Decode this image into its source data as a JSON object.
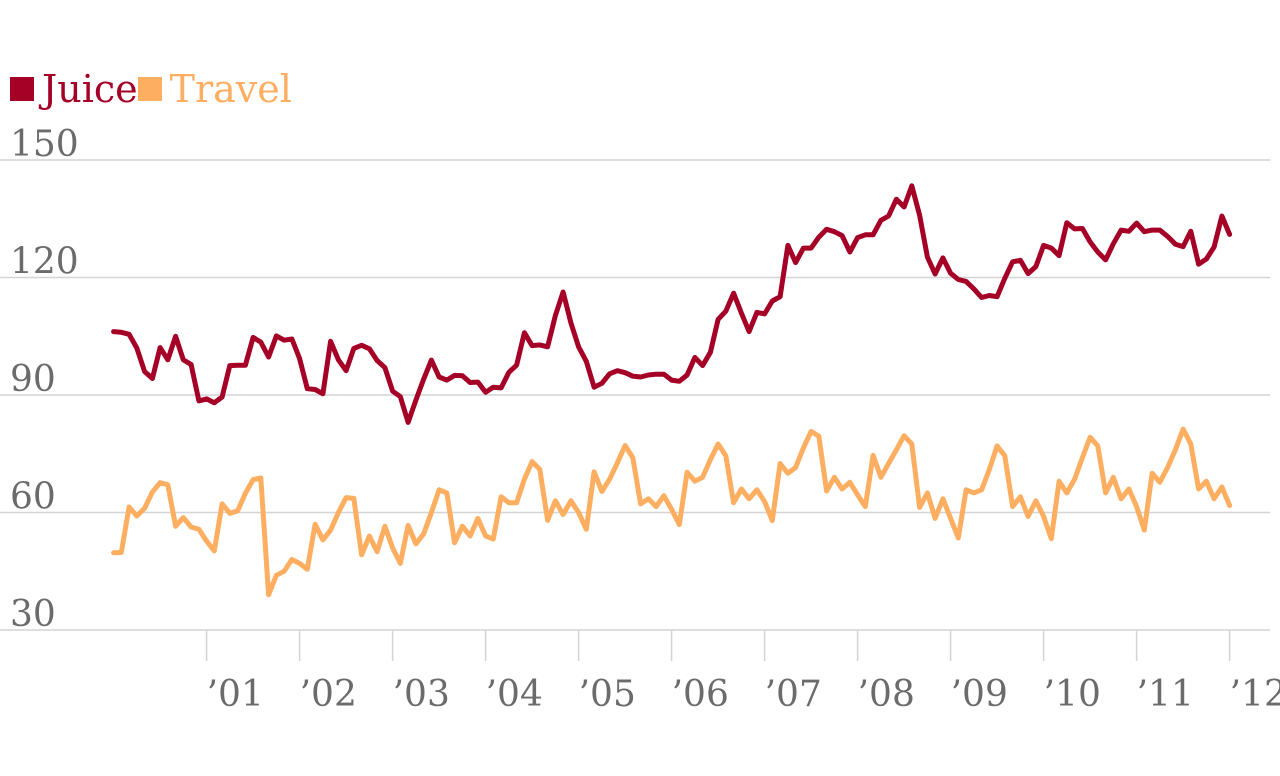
{
  "chart_data": {
    "type": "line",
    "title": "",
    "xlabel": "",
    "ylabel": "",
    "x_ticks": [
      "’01",
      "’02",
      "’03",
      "’04",
      "’05",
      "’06",
      "’07",
      "’08",
      "’09",
      "’10",
      "’11",
      "’12"
    ],
    "y_ticks": [
      30,
      60,
      90,
      120,
      150
    ],
    "ylim": [
      30,
      150
    ],
    "xlim": [
      2000.0,
      2012.0
    ],
    "grid": true,
    "legend_position": "top-left",
    "series": [
      {
        "name": "Juice",
        "color": "#a50026",
        "x": [
          2000.0,
          2000.083,
          2000.167,
          2000.25,
          2000.333,
          2000.417,
          2000.5,
          2000.583,
          2000.667,
          2000.75,
          2000.833,
          2000.917,
          2001.0,
          2001.083,
          2001.167,
          2001.25,
          2001.333,
          2001.417,
          2001.5,
          2001.583,
          2001.667,
          2001.75,
          2001.833,
          2001.917,
          2002.0,
          2002.083,
          2002.167,
          2002.25,
          2002.333,
          2002.417,
          2002.5,
          2002.583,
          2002.667,
          2002.75,
          2002.833,
          2002.917,
          2003.0,
          2003.083,
          2003.167,
          2003.25,
          2003.333,
          2003.417,
          2003.5,
          2003.583,
          2003.667,
          2003.75,
          2003.833,
          2003.917,
          2004.0,
          2004.083,
          2004.167,
          2004.25,
          2004.333,
          2004.417,
          2004.5,
          2004.583,
          2004.667,
          2004.75,
          2004.833,
          2004.917,
          2005.0,
          2005.083,
          2005.167,
          2005.25,
          2005.333,
          2005.417,
          2005.5,
          2005.583,
          2005.667,
          2005.75,
          2005.833,
          2005.917,
          2006.0,
          2006.083,
          2006.167,
          2006.25,
          2006.333,
          2006.417,
          2006.5,
          2006.583,
          2006.667,
          2006.75,
          2006.833,
          2006.917,
          2007.0,
          2007.083,
          2007.167,
          2007.25,
          2007.333,
          2007.417,
          2007.5,
          2007.583,
          2007.667,
          2007.75,
          2007.833,
          2007.917,
          2008.0,
          2008.083,
          2008.167,
          2008.25,
          2008.333,
          2008.417,
          2008.5,
          2008.583,
          2008.667,
          2008.75,
          2008.833,
          2008.917,
          2009.0,
          2009.083,
          2009.167,
          2009.25,
          2009.333,
          2009.417,
          2009.5,
          2009.583,
          2009.667,
          2009.75,
          2009.833,
          2009.917,
          2010.0,
          2010.083,
          2010.167,
          2010.25,
          2010.333,
          2010.417,
          2010.5,
          2010.583,
          2010.667,
          2010.75,
          2010.833,
          2010.917,
          2011.0,
          2011.083,
          2011.167,
          2011.25,
          2011.333,
          2011.417,
          2011.5,
          2011.583,
          2011.667,
          2011.75,
          2011.833,
          2011.917,
          2012.0
        ],
        "values": [
          106.2,
          106.0,
          105.5,
          102.0,
          96.0,
          94.2,
          102.1,
          99.0,
          105.0,
          99.0,
          97.8,
          88.5,
          89.0,
          88.0,
          89.5,
          97.5,
          97.6,
          97.6,
          104.7,
          103.5,
          99.7,
          105.1,
          104.0,
          104.3,
          99.3,
          91.6,
          91.4,
          90.3,
          103.7,
          99.0,
          96.2,
          101.9,
          102.7,
          101.8,
          98.8,
          97.0,
          91.0,
          89.6,
          83.0,
          88.7,
          94.0,
          98.9,
          94.6,
          93.8,
          95.0,
          94.9,
          93.2,
          93.3,
          90.7,
          92.0,
          91.8,
          95.8,
          97.6,
          105.9,
          102.6,
          102.8,
          102.3,
          110.3,
          116.3,
          108.4,
          102.3,
          98.6,
          92.0,
          93.0,
          95.4,
          96.2,
          95.7,
          94.8,
          94.6,
          95.1,
          95.3,
          95.3,
          93.8,
          93.5,
          95.1,
          99.6,
          97.5,
          100.9,
          109.3,
          111.4,
          116.0,
          110.9,
          106.2,
          111.1,
          110.7,
          114.0,
          115.1,
          128.2,
          123.8,
          127.5,
          127.5,
          130.3,
          132.3,
          131.7,
          130.7,
          126.5,
          130.2,
          130.9,
          130.9,
          134.6,
          135.7,
          140.0,
          138.0,
          143.4,
          135.9,
          125.2,
          120.9,
          125.0,
          121.1,
          119.5,
          119.0,
          117.1,
          114.9,
          115.4,
          115.1,
          119.8,
          124.0,
          124.4,
          121.0,
          122.8,
          128.2,
          127.5,
          125.6,
          134.0,
          132.4,
          132.5,
          129.1,
          126.5,
          124.5,
          128.6,
          132.1,
          131.8,
          133.9,
          131.7,
          132.1,
          132.1,
          130.5,
          128.5,
          127.9,
          131.8,
          123.4,
          124.7,
          127.8,
          135.7,
          131.0
        ]
      },
      {
        "name": "Travel",
        "color": "#fdae61",
        "x": [
          2000.0,
          2000.083,
          2000.167,
          2000.25,
          2000.333,
          2000.417,
          2000.5,
          2000.583,
          2000.667,
          2000.75,
          2000.833,
          2000.917,
          2001.0,
          2001.083,
          2001.167,
          2001.25,
          2001.333,
          2001.417,
          2001.5,
          2001.583,
          2001.667,
          2001.75,
          2001.833,
          2001.917,
          2002.0,
          2002.083,
          2002.167,
          2002.25,
          2002.333,
          2002.417,
          2002.5,
          2002.583,
          2002.667,
          2002.75,
          2002.833,
          2002.917,
          2003.0,
          2003.083,
          2003.167,
          2003.25,
          2003.333,
          2003.417,
          2003.5,
          2003.583,
          2003.667,
          2003.75,
          2003.833,
          2003.917,
          2004.0,
          2004.083,
          2004.167,
          2004.25,
          2004.333,
          2004.417,
          2004.5,
          2004.583,
          2004.667,
          2004.75,
          2004.833,
          2004.917,
          2005.0,
          2005.083,
          2005.167,
          2005.25,
          2005.333,
          2005.417,
          2005.5,
          2005.583,
          2005.667,
          2005.75,
          2005.833,
          2005.917,
          2006.0,
          2006.083,
          2006.167,
          2006.25,
          2006.333,
          2006.417,
          2006.5,
          2006.583,
          2006.667,
          2006.75,
          2006.833,
          2006.917,
          2007.0,
          2007.083,
          2007.167,
          2007.25,
          2007.333,
          2007.417,
          2007.5,
          2007.583,
          2007.667,
          2007.75,
          2007.833,
          2007.917,
          2008.0,
          2008.083,
          2008.167,
          2008.25,
          2008.333,
          2008.417,
          2008.5,
          2008.583,
          2008.667,
          2008.75,
          2008.833,
          2008.917,
          2009.0,
          2009.083,
          2009.167,
          2009.25,
          2009.333,
          2009.417,
          2009.5,
          2009.583,
          2009.667,
          2009.75,
          2009.833,
          2009.917,
          2010.0,
          2010.083,
          2010.167,
          2010.25,
          2010.333,
          2010.417,
          2010.5,
          2010.583,
          2010.667,
          2010.75,
          2010.833,
          2010.917,
          2011.0,
          2011.083,
          2011.167,
          2011.25,
          2011.333,
          2011.417,
          2011.5,
          2011.583,
          2011.667,
          2011.75,
          2011.833,
          2011.917,
          2012.0
        ],
        "values": [
          49.7,
          49.8,
          61.4,
          59.1,
          61.1,
          65.2,
          67.6,
          67.1,
          56.5,
          58.7,
          56.3,
          55.7,
          52.7,
          50.2,
          62.2,
          59.8,
          60.4,
          64.9,
          68.4,
          68.8,
          39.0,
          44.0,
          45.0,
          48.0,
          47.0,
          45.5,
          57.0,
          53.0,
          55.5,
          60.0,
          63.8,
          63.6,
          49.2,
          54.0,
          50.0,
          56.5,
          51.0,
          47.0,
          56.7,
          52.0,
          54.5,
          60.0,
          65.8,
          65.0,
          52.3,
          56.5,
          54.0,
          58.5,
          54.0,
          53.2,
          64.0,
          62.5,
          62.5,
          68.5,
          73.0,
          71.0,
          58.0,
          63.0,
          59.5,
          63.0,
          60.0,
          55.7,
          70.4,
          65.4,
          68.5,
          72.7,
          77.1,
          74.0,
          62.2,
          63.5,
          61.5,
          64.3,
          60.8,
          56.9,
          70.3,
          68.0,
          69.0,
          73.5,
          77.5,
          74.5,
          62.5,
          66.0,
          63.5,
          65.8,
          62.8,
          57.9,
          72.5,
          70.0,
          71.5,
          76.5,
          80.7,
          79.5,
          65.5,
          69.0,
          66.0,
          67.7,
          64.5,
          61.5,
          74.6,
          69.0,
          72.5,
          76.0,
          79.6,
          77.5,
          61.3,
          65.0,
          58.5,
          63.5,
          58.5,
          53.5,
          65.8,
          65.0,
          65.8,
          71.0,
          77.0,
          74.5,
          61.5,
          64.0,
          59.0,
          63.0,
          59.0,
          53.3,
          68.0,
          65.0,
          68.5,
          74.0,
          79.2,
          77.0,
          65.0,
          69.0,
          63.5,
          66.0,
          61.5,
          55.5,
          70.0,
          67.7,
          71.5,
          76.0,
          81.3,
          77.5,
          66.0,
          68.0,
          63.5,
          66.5,
          61.8
        ]
      }
    ]
  }
}
